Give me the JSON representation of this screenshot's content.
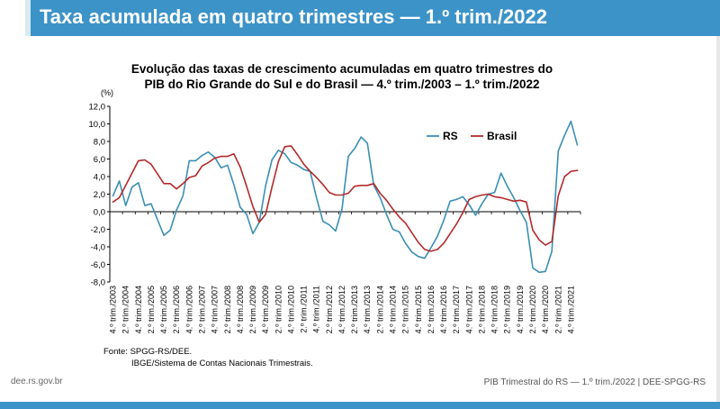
{
  "header": {
    "title": "Taxa acumulada em quatro trimestres — 1.º trim./2022"
  },
  "chart_title_lines": [
    "Evolução das taxas de crescimento acumuladas em quatro trimestres do",
    "PIB do Rio Grande do Sul e do Brasil — 4.º trim./2003 – 1.º trim./2022"
  ],
  "chart_data": {
    "type": "line",
    "ylabel": "(%)",
    "ylim": [
      -8,
      12
    ],
    "yticks": [
      "12,0",
      "10,0",
      "8,0",
      "6,0",
      "4,0",
      "2,0",
      "0,0",
      "-2,0",
      "-4,0",
      "-6,0",
      "-8,0"
    ],
    "xtick_labels": [
      "4.º trim./2003",
      "2.º trim./2004",
      "4.º trim./2004",
      "2.º trim./2005",
      "4.º trim./2005",
      "2.º trim./2006",
      "4.º trim./2006",
      "2.º trim./2007",
      "4.º trim./2007",
      "2.º trim./2008",
      "4.º trim./2008",
      "2.º trim./2009",
      "4.º trim./2009",
      "2.º trim./2010",
      "4.º trim./2010",
      "2.º trim./2011",
      "4.º trim./2011",
      "2.º trim./2012",
      "4.º trim./2012",
      "2.º trim./2013",
      "4.º trim./2013",
      "2.º trim./2014",
      "4.º trim./2014",
      "2.º trim./2015",
      "4.º trim./2015",
      "2.º trim./2016",
      "4.º trim./2016",
      "2.º trim./2017",
      "4.º trim./2017",
      "2.º trim./2018",
      "4.º trim./2018",
      "2.º trim./2019",
      "4.º trim./2019",
      "2.º trim./2020",
      "4.º trim./2020",
      "2.º trim./2021",
      "4.º trim./2021"
    ],
    "series": [
      {
        "name": "RS",
        "color": "#3a8fb4",
        "values": [
          1.8,
          3.5,
          0.7,
          2.8,
          3.3,
          0.7,
          0.9,
          -0.9,
          -2.7,
          -2.1,
          0.2,
          1.8,
          5.8,
          5.8,
          6.4,
          6.8,
          6.2,
          5.0,
          5.3,
          3.1,
          0.5,
          -0.3,
          -2.5,
          -1.2,
          3.0,
          5.9,
          7.0,
          6.6,
          5.6,
          5.3,
          4.8,
          4.6,
          1.6,
          -1.1,
          -1.5,
          -2.2,
          0.3,
          6.3,
          7.2,
          8.5,
          7.8,
          3.0,
          1.6,
          -0.3,
          -2.0,
          -2.3,
          -3.6,
          -4.6,
          -5.1,
          -5.3,
          -4.1,
          -2.8,
          -1.0,
          1.2,
          1.4,
          1.7,
          0.8,
          -0.4,
          0.9,
          2.0,
          2.2,
          4.4,
          2.9,
          1.6,
          0.1,
          -1.2,
          -6.4,
          -6.9,
          -6.8,
          -4.5,
          6.9,
          8.7,
          10.3,
          7.6
        ]
      },
      {
        "name": "Brasil",
        "color": "#b22a2a",
        "values": [
          1.1,
          1.6,
          3.0,
          4.4,
          5.8,
          5.9,
          5.4,
          4.3,
          3.2,
          3.2,
          2.6,
          3.2,
          3.9,
          4.1,
          5.2,
          5.6,
          6.1,
          6.3,
          6.3,
          6.6,
          5.1,
          2.9,
          0.6,
          -1.2,
          -0.3,
          2.8,
          5.7,
          7.4,
          7.5,
          6.5,
          5.4,
          4.6,
          3.9,
          3.1,
          2.2,
          1.9,
          1.9,
          2.1,
          2.9,
          3.0,
          3.0,
          3.2,
          2.1,
          1.3,
          0.3,
          -0.6,
          -1.3,
          -2.4,
          -3.5,
          -4.3,
          -4.5,
          -4.3,
          -3.6,
          -2.5,
          -1.4,
          -0.1,
          1.4,
          1.7,
          1.9,
          2.0,
          1.7,
          1.6,
          1.4,
          1.2,
          1.3,
          1.1,
          -2.1,
          -3.2,
          -3.8,
          -3.4,
          1.8,
          4.0,
          4.6,
          4.7
        ]
      }
    ],
    "legend_position": "top-right"
  },
  "source": {
    "line1": "Fonte: SPGG-RS/DEE.",
    "line2": "IBGE/Sistema de Contas Nacionais Trimestrais."
  },
  "footer": {
    "left": "dee.rs.gov.br",
    "right": "PIB Trimestral do RS — 1.º trim./2022  |  DEE-SPGG-RS"
  },
  "colors": {
    "header_blue": "#3c93c8",
    "rs_line": "#3a8fb4",
    "brasil_line": "#b22a2a"
  }
}
